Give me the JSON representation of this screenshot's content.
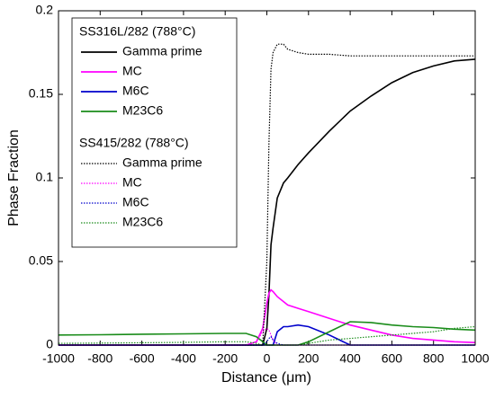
{
  "chart_data": {
    "type": "line",
    "x_label": "Distance (μm)",
    "y_label": "Phase Fraction",
    "xlim": [
      -1000,
      1000
    ],
    "xticks": [
      -1000,
      -800,
      -600,
      -400,
      -200,
      0,
      200,
      400,
      600,
      800,
      1000
    ],
    "ylim": [
      0,
      0.2
    ],
    "yticks": [
      0,
      0.05,
      0.1,
      0.15,
      0.2
    ],
    "x": [
      -1000,
      -800,
      -600,
      -400,
      -200,
      -100,
      -50,
      -20,
      0,
      10,
      20,
      30,
      50,
      80,
      100,
      150,
      200,
      300,
      400,
      500,
      600,
      700,
      800,
      900,
      1000
    ],
    "groups": [
      {
        "title": "SS316L/282 (788°C)",
        "style": "solid",
        "series": [
          {
            "name": "Gamma prime",
            "color": "#000000",
            "values": [
              0,
              0,
              0,
              0,
              0,
              0,
              0,
              0,
              0.01,
              0.03,
              0.06,
              0.07,
              0.088,
              0.097,
              0.1,
              0.108,
              0.115,
              0.128,
              0.14,
              0.149,
              0.157,
              0.163,
              0.167,
              0.17,
              0.171
            ]
          },
          {
            "name": "MC",
            "color": "#ff00ff",
            "values": [
              0,
              0,
              0,
              0,
              0,
              0,
              0.002,
              0.01,
              0.025,
              0.031,
              0.033,
              0.032,
              0.029,
              0.026,
              0.024,
              0.022,
              0.02,
              0.016,
              0.012,
              0.009,
              0.006,
              0.004,
              0.003,
              0.002,
              0.0015
            ]
          },
          {
            "name": "M6C",
            "color": "#0000cc",
            "values": [
              0,
              0,
              0,
              0,
              0,
              0,
              0,
              0,
              0,
              0,
              0,
              0,
              0.008,
              0.011,
              0.011,
              0.012,
              0.011,
              0.006,
              0,
              0,
              0,
              0,
              0,
              0,
              0
            ]
          },
          {
            "name": "M23C6",
            "color": "#1a8c1a",
            "values": [
              0.006,
              0.0062,
              0.0065,
              0.0067,
              0.007,
              0.007,
              0.005,
              0.002,
              0,
              0,
              0,
              0,
              0,
              0,
              0,
              0,
              0.002,
              0.008,
              0.014,
              0.0135,
              0.012,
              0.011,
              0.0105,
              0.0095,
              0.009
            ]
          }
        ]
      },
      {
        "title": "SS415/282 (788°C)",
        "style": "dotted",
        "series": [
          {
            "name": "Gamma prime",
            "color": "#000000",
            "values": [
              0,
              0,
              0,
              0,
              0,
              0,
              0,
              0,
              0.05,
              0.12,
              0.165,
              0.175,
              0.18,
              0.18,
              0.177,
              0.175,
              0.174,
              0.174,
              0.173,
              0.173,
              0.173,
              0.173,
              0.173,
              0.173,
              0.173
            ]
          },
          {
            "name": "MC",
            "color": "#ff00ff",
            "values": [
              0,
              0,
              0,
              0,
              0,
              0,
              0.002,
              0.008,
              0.01,
              0.009,
              0.006,
              0.003,
              0,
              0,
              0,
              0,
              0,
              0,
              0,
              0,
              0,
              0,
              0,
              0,
              0
            ]
          },
          {
            "name": "M6C",
            "color": "#0000cc",
            "values": [
              0,
              0,
              0,
              0,
              0,
              0,
              0,
              0,
              0.002,
              0.004,
              0.005,
              0.003,
              0.001,
              0,
              0,
              0,
              0,
              0,
              0,
              0,
              0,
              0,
              0,
              0,
              0
            ]
          },
          {
            "name": "M23C6",
            "color": "#1a8c1a",
            "values": [
              0.001,
              0.0012,
              0.0014,
              0.0016,
              0.002,
              0.002,
              0.001,
              0,
              0,
              0,
              0,
              0,
              0,
              0,
              0,
              0,
              0.001,
              0.003,
              0.004,
              0.005,
              0.006,
              0.007,
              0.008,
              0.01,
              0.011
            ]
          }
        ]
      }
    ]
  }
}
